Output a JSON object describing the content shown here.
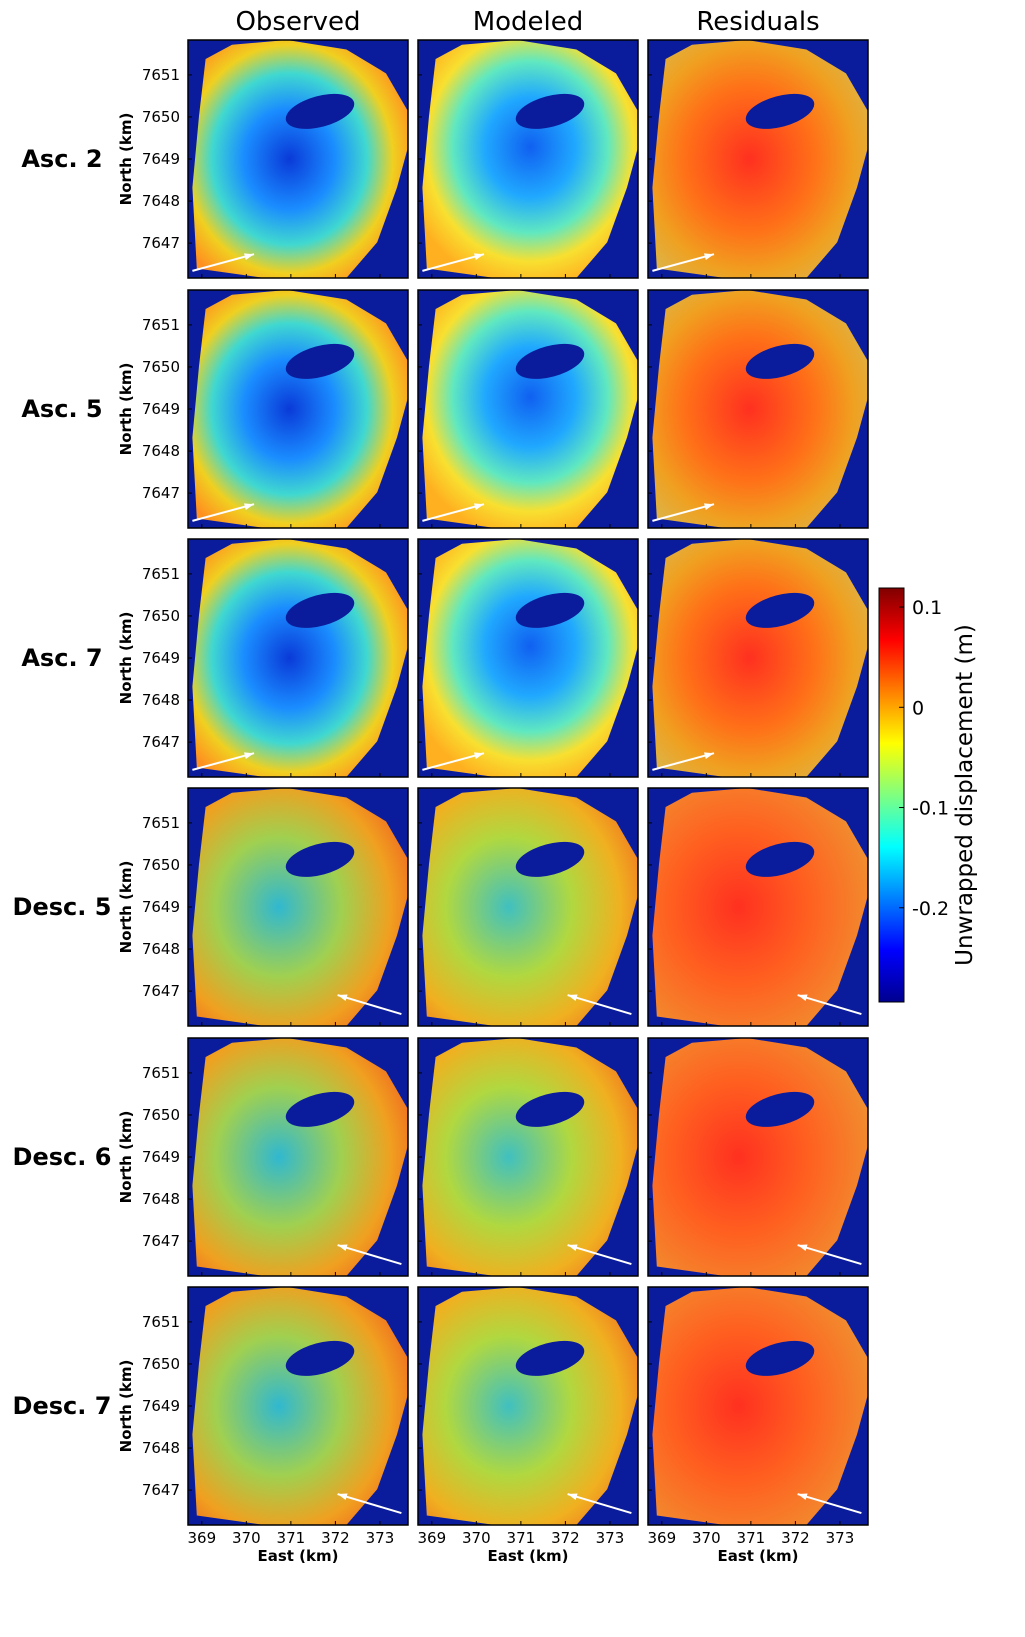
{
  "chart_data": {
    "type": "image-grid",
    "columns": [
      "Observed",
      "Modeled",
      "Residuals"
    ],
    "rows": [
      "Asc. 2",
      "Asc. 5",
      "Asc. 7",
      "Desc. 5",
      "Desc. 6",
      "Desc. 7"
    ],
    "ylabel": "North (km)",
    "xlabel": "East (km)",
    "xlim": [
      368.69,
      373.63
    ],
    "xticks": [
      369,
      370,
      371,
      372,
      373
    ],
    "ylim": [
      7646.17,
      7651.83
    ],
    "yticks": [
      7647,
      7648,
      7649,
      7650,
      7651
    ],
    "colorbar": {
      "label": "Unwrapped displacement (m)",
      "colormap": "jet",
      "lim": [
        -0.294,
        0.119
      ],
      "ticks": [
        -0.2,
        -0.1,
        0,
        0.1
      ]
    }
  }
}
